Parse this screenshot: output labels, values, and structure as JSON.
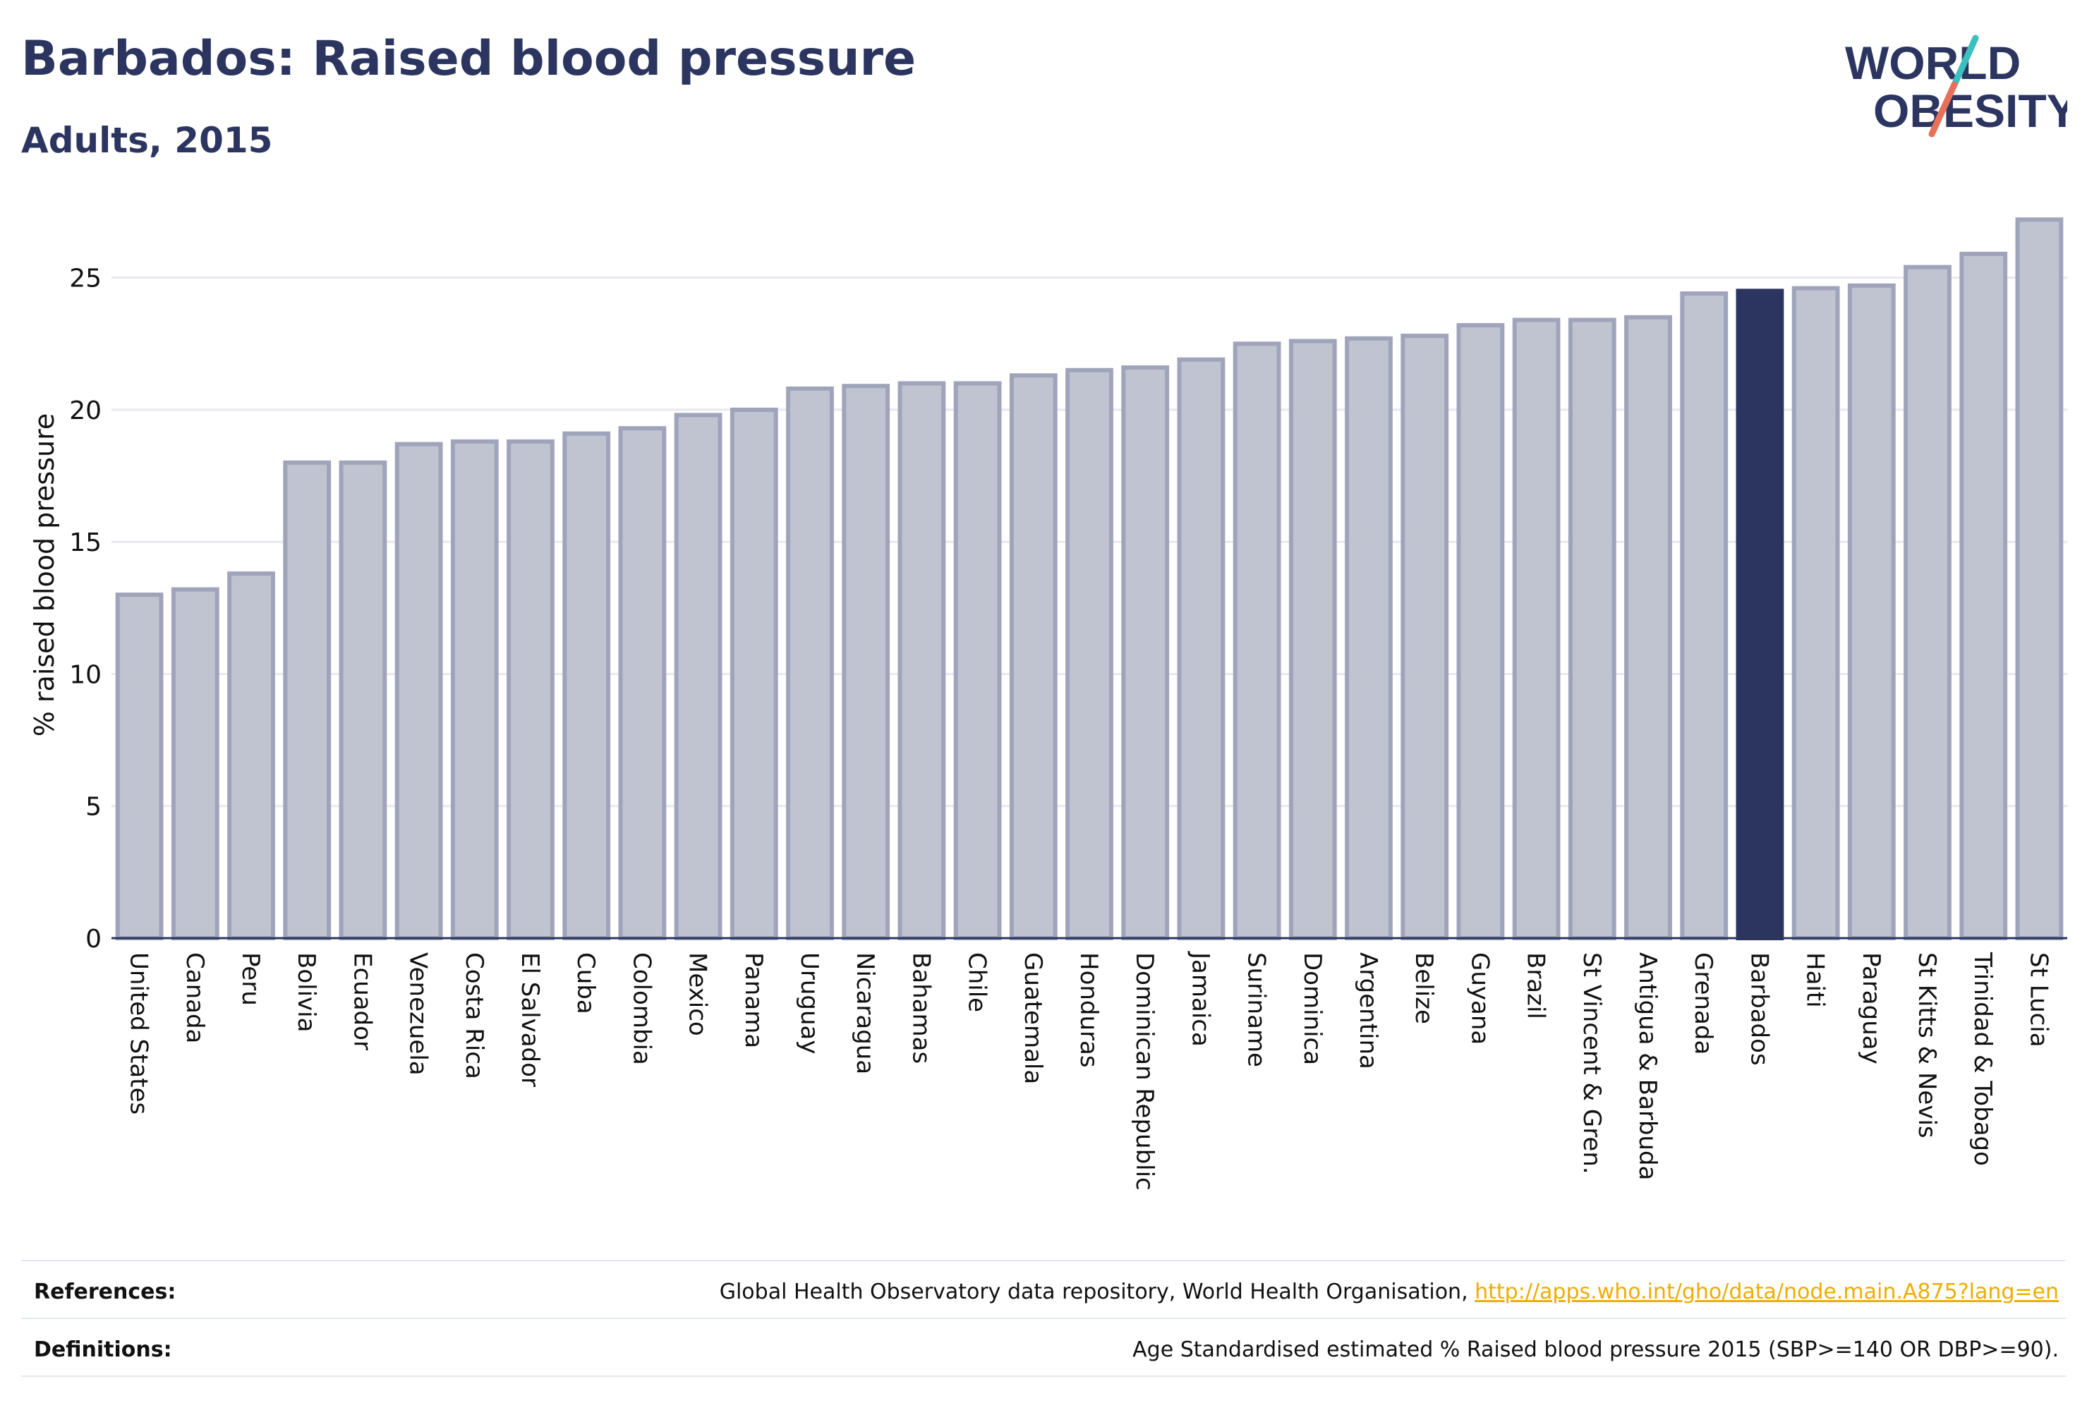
{
  "header": {
    "title": "Barbados: Raised blood pressure",
    "subtitle": "Adults, 2015"
  },
  "logo": {
    "line1": "WORLD",
    "line2": "OBESITY",
    "text_color": "#2b3560",
    "slash_top_color": "#3bbfbf",
    "slash_bottom_color": "#e8705a"
  },
  "colors": {
    "bar_fill": "#c0c3d0",
    "bar_stroke": "#9fa4bb",
    "highlight": "#2b3560",
    "grid": "#e8e8ee",
    "axis": "#2b3560"
  },
  "chart_data": {
    "type": "bar",
    "ylabel": "% raised blood pressure",
    "ylim": [
      0,
      27.5
    ],
    "yticks": [
      0,
      5,
      10,
      15,
      20,
      25
    ],
    "grid": true,
    "highlight": "Barbados",
    "categories": [
      "United States",
      "Canada",
      "Peru",
      "Bolivia",
      "Ecuador",
      "Venezuela",
      "Costa Rica",
      "El Salvador",
      "Cuba",
      "Colombia",
      "Mexico",
      "Panama",
      "Uruguay",
      "Nicaragua",
      "Bahamas",
      "Chile",
      "Guatemala",
      "Honduras",
      "Dominican Republic",
      "Jamaica",
      "Suriname",
      "Dominica",
      "Argentina",
      "Belize",
      "Guyana",
      "Brazil",
      "St Vincent & Gren.",
      "Antigua & Barbuda",
      "Grenada",
      "Barbados",
      "Haiti",
      "Paraguay",
      "St Kitts & Nevis",
      "Trinidad & Tobago",
      "St Lucia"
    ],
    "values": [
      13.0,
      13.2,
      13.8,
      18.0,
      18.0,
      18.7,
      18.8,
      18.8,
      19.1,
      19.3,
      19.8,
      20.0,
      20.8,
      20.9,
      21.0,
      21.0,
      21.3,
      21.5,
      21.6,
      21.9,
      22.5,
      22.6,
      22.7,
      22.8,
      23.2,
      23.4,
      23.4,
      23.5,
      24.4,
      24.5,
      24.6,
      24.7,
      25.4,
      25.9,
      27.2
    ]
  },
  "footer": {
    "references_label": "References:",
    "references_text": "Global Health Observatory data repository, World Health Organisation, ",
    "references_link": "http://apps.who.int/gho/data/node.main.A875?lang=en",
    "definitions_label": "Definitions:",
    "definitions_text": "Age Standardised estimated % Raised blood pressure 2015 (SBP>=140 OR DBP>=90)."
  }
}
